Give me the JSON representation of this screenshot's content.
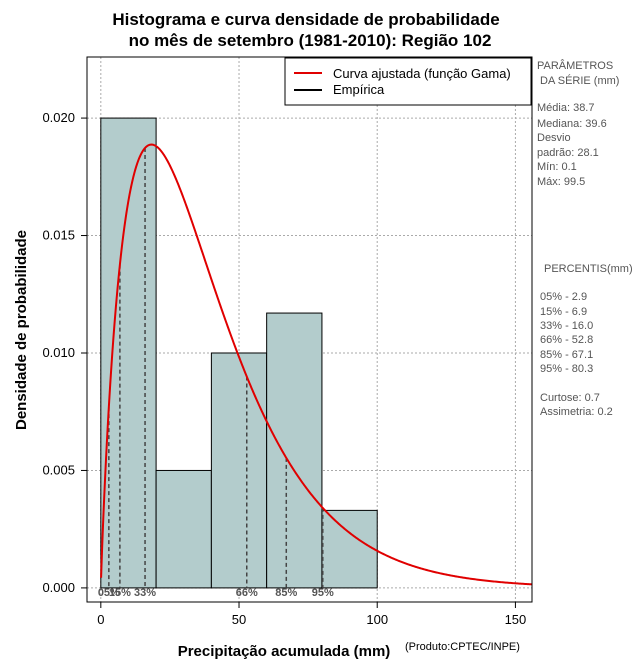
{
  "chart_data": {
    "type": "histogram",
    "title_line1": "Histograma e curva densidade de probabilidade",
    "title_line2": "no mês de setembro (1981-2010): Região 102",
    "xlabel": "Precipitação acumulada (mm)",
    "ylabel": "Densidade de probabilidade",
    "credit": "(Produto:CPTEC/INPE)",
    "xlim": [
      -5,
      156
    ],
    "ylim": [
      -0.0006,
      0.0226
    ],
    "x_ticks": [
      0,
      50,
      100,
      150
    ],
    "x_tick_labels": [
      "0",
      "50",
      "100",
      "150"
    ],
    "y_ticks": [
      0.0,
      0.005,
      0.01,
      0.015,
      0.02
    ],
    "y_tick_labels": [
      "0.000",
      "0.005",
      "0.010",
      "0.015",
      "0.020"
    ],
    "bins": [
      {
        "x0": 0,
        "x1": 20,
        "density": 0.02
      },
      {
        "x0": 20,
        "x1": 40,
        "density": 0.005
      },
      {
        "x0": 40,
        "x1": 60,
        "density": 0.01
      },
      {
        "x0": 60,
        "x1": 80,
        "density": 0.0117
      },
      {
        "x0": 80,
        "x1": 100,
        "density": 0.0033
      }
    ],
    "gamma_fit": {
      "mean": 38.7,
      "sd": 28.1,
      "x_start": 0.1,
      "x_end": 156
    },
    "percentile_lines": [
      {
        "label": "05%",
        "x": 2.9
      },
      {
        "label": "15%",
        "x": 6.9
      },
      {
        "label": "33%",
        "x": 16.0
      },
      {
        "label": "66%",
        "x": 52.8
      },
      {
        "label": "85%",
        "x": 67.1
      },
      {
        "label": "95%",
        "x": 80.3
      }
    ],
    "legend": {
      "position": "top-right",
      "items": [
        {
          "label": "Curva ajustada (função Gama)",
          "color": "#e00000"
        },
        {
          "label": "Empírica",
          "color": "#000000"
        }
      ]
    },
    "colors": {
      "bar_fill": "#b3cccc",
      "curve": "#e00000",
      "grid": "#aaaaaa"
    },
    "grid": true
  },
  "side_panel": {
    "params_header_1": "PARÂMETROS",
    "params_header_2": "DA SÉRIE (mm)",
    "params": [
      "Média:  38.7",
      "Mediana:  39.6",
      "Desvio",
      "padrão:  28.1",
      "Mín:  0.1",
      "Máx:  99.5"
    ],
    "percentis_header": "PERCENTIS(mm)",
    "percentis": [
      "05% -   2.9",
      "15% -   6.9",
      "33% -   16.0",
      "66% -   52.8",
      "85% -   67.1",
      "95% -   80.3"
    ],
    "stats": [
      "Curtose:  0.7",
      "Assimetria:  0.2"
    ]
  }
}
